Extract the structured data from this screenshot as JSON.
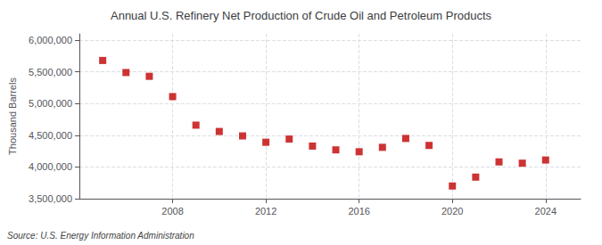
{
  "chart_data": {
    "type": "scatter",
    "title": "Annual U.S. Refinery Net Production of Crude Oil and Petroleum Products",
    "ylabel": "Thousand Barrels",
    "annotation": "Source: U.S. Energy Information Administration",
    "x": [
      2005,
      2006,
      2007,
      2008,
      2009,
      2010,
      2011,
      2012,
      2013,
      2014,
      2015,
      2016,
      2017,
      2018,
      2019,
      2020,
      2021,
      2022,
      2023,
      2024
    ],
    "values": [
      5680000,
      5490000,
      5430000,
      5110000,
      4660000,
      4560000,
      4490000,
      4390000,
      4440000,
      4330000,
      4270000,
      4240000,
      4310000,
      4450000,
      4340000,
      3700000,
      3840000,
      4080000,
      4060000,
      4110000
    ],
    "color": "#c00000",
    "marker": "square",
    "xlim": [
      2004.0,
      2025.5
    ],
    "xticks": [
      2008,
      2012,
      2016,
      2020,
      2024
    ],
    "ylim": [
      3500000,
      6100000
    ],
    "yticks": [
      {
        "value": 3500000,
        "label": "3,500,000"
      },
      {
        "value": 4000000,
        "label": "4,000,000"
      },
      {
        "value": 4500000,
        "label": "4,500,000"
      },
      {
        "value": 5000000,
        "label": "5,000,000"
      },
      {
        "value": 5500000,
        "label": "5,500,000"
      },
      {
        "value": 6000000,
        "label": "6,000,000"
      }
    ],
    "grid": true
  }
}
